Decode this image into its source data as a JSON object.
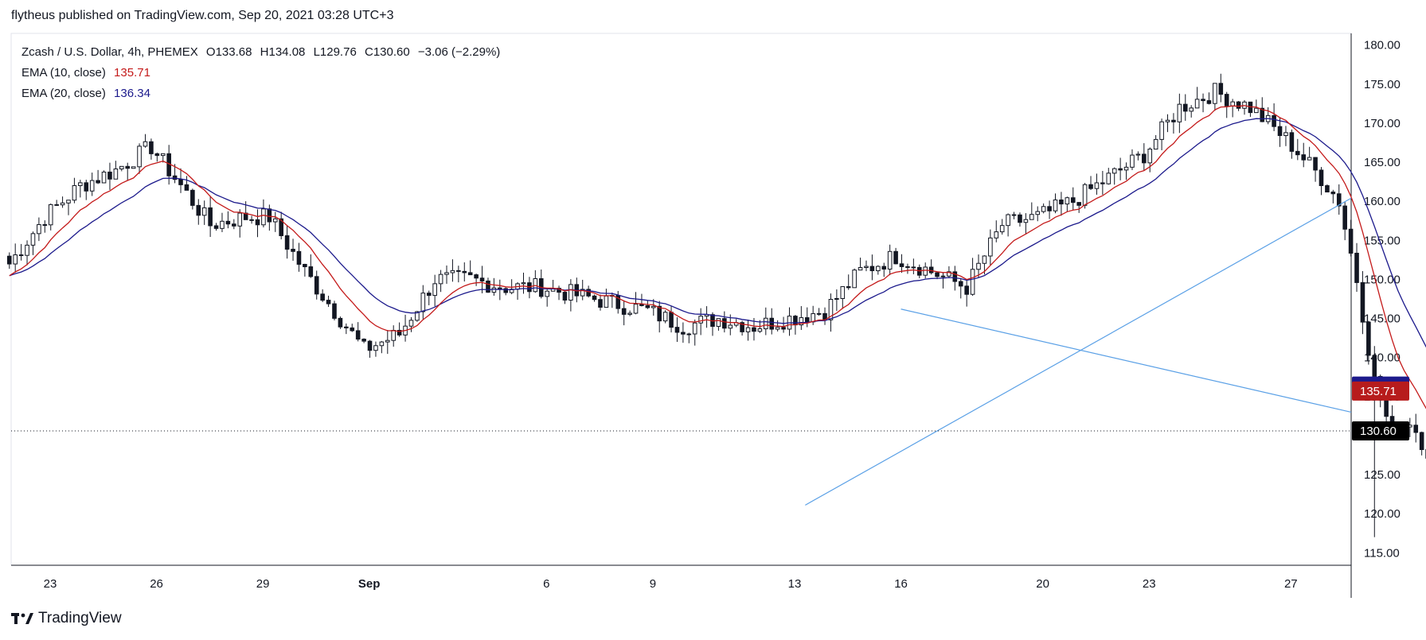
{
  "attribution": "flytheus published on TradingView.com, Sep 20, 2021 03:28 UTC+3",
  "brand": {
    "name": "TradingView",
    "icon": "tradingview-logo-icon"
  },
  "legend": {
    "symbol": "Zcash / U.S. Dollar, 4h, PHEMEX",
    "ohlc": {
      "o_label": "O",
      "o": "133.68",
      "h_label": "H",
      "h": "134.08",
      "l_label": "L",
      "l": "129.76",
      "c_label": "C",
      "c": "130.60",
      "change": "−3.06 (−2.29%)"
    },
    "ema10": {
      "label": "EMA (10, close)",
      "value": "135.71"
    },
    "ema20": {
      "label": "EMA (20, close)",
      "value": "136.34"
    }
  },
  "colors": {
    "up": "#131722",
    "down": "#131722",
    "ema10": "#c41a1a",
    "ema20": "#1c1a8c",
    "trendline": "#5aa0e6",
    "axis": "#131722",
    "grid": "#e0e3eb",
    "tag_ema20": "#1c1a8c",
    "tag_ema10": "#b71c1c",
    "tag_price": "#000000"
  },
  "chart_data": {
    "type": "candlestick",
    "title": "Zcash / U.S. Dollar, 4h, PHEMEX",
    "interval": "4h",
    "y_ticks": [
      "180.00",
      "175.00",
      "170.00",
      "165.00",
      "160.00",
      "155.00",
      "150.00",
      "145.00",
      "140.00",
      "135.00",
      "130.00",
      "125.00",
      "120.00",
      "115.00"
    ],
    "ylim": [
      113.5,
      181.5
    ],
    "x_ticks": [
      {
        "label": "23",
        "day": 23
      },
      {
        "label": "26",
        "day": 26
      },
      {
        "label": "29",
        "day": 29
      },
      {
        "label": "Sep",
        "day": 32
      },
      {
        "label": "6",
        "day": 37
      },
      {
        "label": "9",
        "day": 40
      },
      {
        "label": "13",
        "day": 44
      },
      {
        "label": "16",
        "day": 47
      },
      {
        "label": "20",
        "day": 51
      },
      {
        "label": "23",
        "day": 54
      },
      {
        "label": "27",
        "day": 58
      }
    ],
    "x_day_unit": "days (Aug 1 = day 1)",
    "xlim_days": [
      21.9,
      59.7
    ],
    "candle_start_day": 21.85,
    "candle_step_days": 0.1667,
    "close_anchors": [
      [
        0,
        152
      ],
      [
        6,
        158
      ],
      [
        12,
        162
      ],
      [
        18,
        164
      ],
      [
        24,
        167
      ],
      [
        28,
        163
      ],
      [
        34,
        157
      ],
      [
        40,
        158
      ],
      [
        44,
        158
      ],
      [
        50,
        151
      ],
      [
        56,
        145
      ],
      [
        60,
        141
      ],
      [
        66,
        143
      ],
      [
        72,
        150
      ],
      [
        78,
        150
      ],
      [
        84,
        149
      ],
      [
        90,
        149
      ],
      [
        96,
        148
      ],
      [
        102,
        147
      ],
      [
        108,
        146
      ],
      [
        114,
        144
      ],
      [
        120,
        145
      ],
      [
        126,
        144
      ],
      [
        132,
        145
      ],
      [
        138,
        146
      ],
      [
        144,
        151
      ],
      [
        150,
        153
      ],
      [
        156,
        151
      ],
      [
        162,
        149
      ],
      [
        168,
        157
      ],
      [
        174,
        158
      ],
      [
        180,
        160
      ],
      [
        186,
        163
      ],
      [
        192,
        166
      ],
      [
        198,
        172
      ],
      [
        204,
        174
      ],
      [
        210,
        172
      ],
      [
        216,
        168
      ],
      [
        222,
        163
      ],
      [
        225,
        160
      ],
      [
        228,
        150
      ],
      [
        231,
        137
      ],
      [
        234,
        130
      ],
      [
        237,
        132
      ],
      [
        240,
        128
      ],
      [
        244,
        125
      ],
      [
        250,
        134
      ],
      [
        256,
        140
      ],
      [
        262,
        137
      ],
      [
        268,
        138
      ],
      [
        274,
        136
      ],
      [
        280,
        129
      ],
      [
        286,
        128
      ],
      [
        292,
        130
      ],
      [
        298,
        131
      ],
      [
        304,
        132
      ],
      [
        310,
        133
      ],
      [
        316,
        131
      ],
      [
        320,
        125
      ],
      [
        324,
        122
      ],
      [
        330,
        126
      ],
      [
        336,
        129
      ],
      [
        342,
        131
      ],
      [
        348,
        132
      ],
      [
        354,
        134
      ],
      [
        360,
        139
      ],
      [
        364,
        143
      ],
      [
        368,
        140
      ],
      [
        374,
        138
      ],
      [
        380,
        137
      ],
      [
        386,
        135
      ],
      [
        392,
        135
      ],
      [
        396,
        138
      ],
      [
        402,
        140
      ],
      [
        408,
        139
      ],
      [
        412,
        139
      ],
      [
        416,
        136
      ],
      [
        420,
        135
      ],
      [
        422,
        133
      ],
      [
        424,
        130.6
      ]
    ],
    "last_candle": {
      "o": 133.68,
      "h": 134.08,
      "l": 129.76,
      "c": 130.6
    },
    "series": [
      {
        "name": "EMA (10, close)",
        "last": 135.71
      },
      {
        "name": "EMA (20, close)",
        "last": 136.34
      }
    ],
    "trendlines": [
      {
        "from": {
          "day": 44.3,
          "price": 121.1
        },
        "to": {
          "day": 59.7,
          "price": 160.4
        }
      },
      {
        "from": {
          "day": 47.0,
          "price": 146.2
        },
        "to": {
          "day": 59.7,
          "price": 133.0
        }
      }
    ],
    "last_price_line": 130.6,
    "price_tags": [
      {
        "label": "136.34",
        "value": 136.34,
        "color_key": "tag_ema20"
      },
      {
        "label": "135.71",
        "value": 135.71,
        "color_key": "tag_ema10"
      },
      {
        "label": "130.60",
        "value": 130.6,
        "color_key": "tag_price"
      }
    ]
  }
}
